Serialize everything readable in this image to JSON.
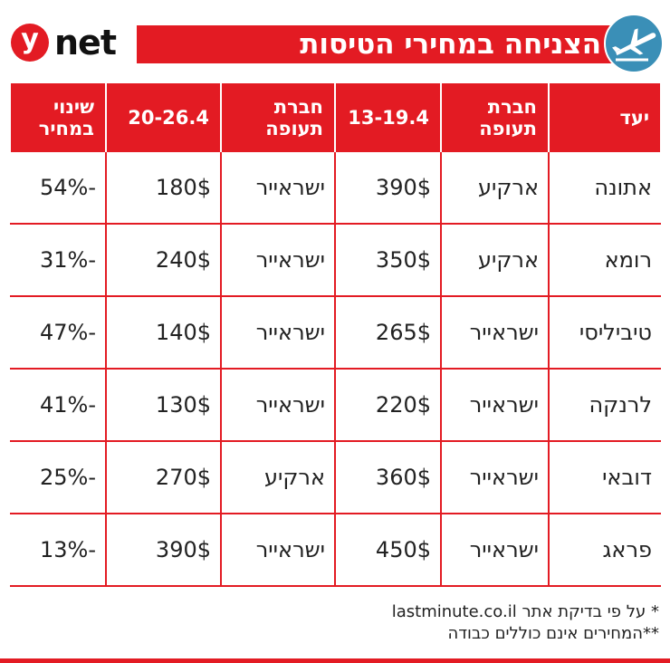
{
  "brand": {
    "logo_letter": "y",
    "logo_word": "net"
  },
  "title": "הצניחה במחירי הטיסות",
  "icons": {
    "title_icon": "airplane-icon",
    "color_accent": "#e31b23",
    "icon_bg": "#3a8fb7"
  },
  "table": {
    "headers": [
      "יעד",
      "חברת תעופה",
      "13-19.4",
      "חברת תעופה",
      "20-26.4",
      "שינוי במחיר"
    ],
    "rows": [
      {
        "destination": "אתונה",
        "airline1": "ארקיע",
        "price1": "390$",
        "airline2": "ישראייר",
        "price2": "180$",
        "change": "-54%"
      },
      {
        "destination": "רומא",
        "airline1": "ארקיע",
        "price1": "350$",
        "airline2": "ישראייר",
        "price2": "240$",
        "change": "-31%"
      },
      {
        "destination": "טיביליסי",
        "airline1": "ישראייר",
        "price1": "265$",
        "airline2": "ישראייר",
        "price2": "140$",
        "change": "-47%"
      },
      {
        "destination": "לרנקה",
        "airline1": "ישראייר",
        "price1": "220$",
        "airline2": "ישראייר",
        "price2": "130$",
        "change": "-41%"
      },
      {
        "destination": "דובאי",
        "airline1": "ישראייר",
        "price1": "360$",
        "airline2": "ארקיע",
        "price2": "270$",
        "change": "-25%"
      },
      {
        "destination": "פראג",
        "airline1": "ישראייר",
        "price1": "450$",
        "airline2": "ישראייר",
        "price2": "390$",
        "change": "-13%"
      }
    ]
  },
  "notes": {
    "note1": "* על פי בדיקת אתר lastminute.co.il",
    "note2": "**המחירים אינם כוללים כבודה"
  }
}
